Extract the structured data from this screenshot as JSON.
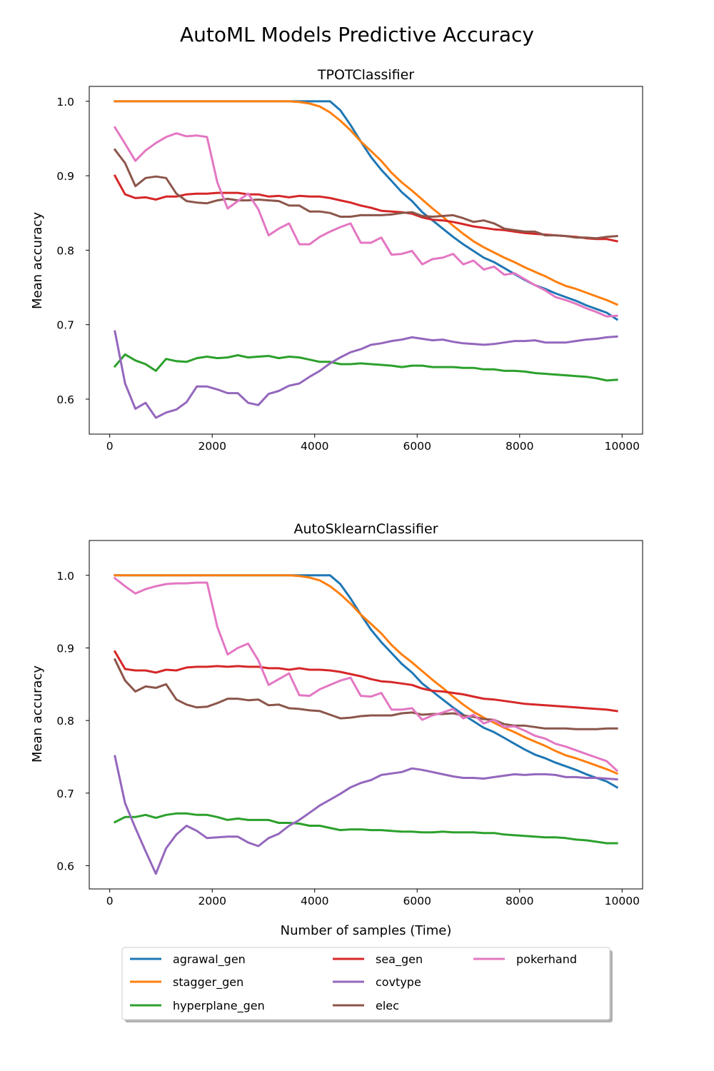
{
  "figure": {
    "suptitle": "AutoML Models Predictive Accuracy",
    "colors": {
      "agrawal_gen": "#1f77b4",
      "stagger_gen": "#ff7f0e",
      "hyperplane_gen": "#2ca02c",
      "sea_gen": "#d62728",
      "covtype": "#9467bd",
      "elec": "#8c564b",
      "pokerhand": "#e377c2"
    },
    "legend": [
      "agrawal_gen",
      "stagger_gen",
      "hyperplane_gen",
      "sea_gen",
      "covtype",
      "elec",
      "pokerhand"
    ],
    "legend_location": "lower-center",
    "legend_columns": 3
  },
  "chart_data": [
    {
      "type": "line",
      "title": "TPOTClassifier",
      "xlabel": "",
      "ylabel": "Mean accuracy",
      "xlim": [
        -400,
        10400
      ],
      "ylim": [
        0.553,
        1.02
      ],
      "xticks": [
        0,
        2000,
        4000,
        6000,
        8000,
        10000
      ],
      "xtick_labels": [
        "0",
        "2000",
        "4000",
        "6000",
        "8000",
        "10000"
      ],
      "yticks": [
        0.6,
        0.7,
        0.8,
        0.9,
        1.0
      ],
      "ytick_labels": [
        "0.6",
        "0.7",
        "0.8",
        "0.9",
        "1.0"
      ],
      "grid": false,
      "x": [
        100,
        300,
        500,
        700,
        900,
        1100,
        1300,
        1500,
        1700,
        1900,
        2100,
        2300,
        2500,
        2700,
        2900,
        3100,
        3300,
        3500,
        3700,
        3900,
        4100,
        4300,
        4500,
        4700,
        4900,
        5100,
        5300,
        5500,
        5700,
        5900,
        6100,
        6300,
        6500,
        6700,
        6900,
        7100,
        7300,
        7500,
        7700,
        7900,
        8100,
        8300,
        8500,
        8700,
        8900,
        9100,
        9300,
        9500,
        9700,
        9900
      ],
      "series": [
        {
          "name": "agrawal_gen",
          "values": [
            1.0,
            1.0,
            1.0,
            1.0,
            1.0,
            1.0,
            1.0,
            1.0,
            1.0,
            1.0,
            1.0,
            1.0,
            1.0,
            1.0,
            1.0,
            1.0,
            1.0,
            1.0,
            1.0,
            1.0,
            1.0,
            1.0,
            0.988,
            0.968,
            0.946,
            0.925,
            0.908,
            0.893,
            0.878,
            0.866,
            0.851,
            0.84,
            0.829,
            0.818,
            0.808,
            0.799,
            0.79,
            0.784,
            0.776,
            0.768,
            0.76,
            0.753,
            0.748,
            0.742,
            0.737,
            0.732,
            0.726,
            0.721,
            0.716,
            0.707
          ]
        },
        {
          "name": "stagger_gen",
          "values": [
            1.0,
            1.0,
            1.0,
            1.0,
            1.0,
            1.0,
            1.0,
            1.0,
            1.0,
            1.0,
            1.0,
            1.0,
            1.0,
            1.0,
            1.0,
            1.0,
            1.0,
            1.0,
            0.999,
            0.997,
            0.993,
            0.985,
            0.974,
            0.961,
            0.946,
            0.933,
            0.92,
            0.904,
            0.891,
            0.88,
            0.868,
            0.856,
            0.845,
            0.833,
            0.822,
            0.812,
            0.804,
            0.797,
            0.79,
            0.784,
            0.777,
            0.771,
            0.765,
            0.758,
            0.752,
            0.748,
            0.743,
            0.738,
            0.733,
            0.727
          ]
        },
        {
          "name": "hyperplane_gen",
          "values": [
            0.644,
            0.66,
            0.652,
            0.647,
            0.638,
            0.654,
            0.651,
            0.65,
            0.655,
            0.657,
            0.655,
            0.656,
            0.659,
            0.656,
            0.657,
            0.658,
            0.655,
            0.657,
            0.656,
            0.653,
            0.65,
            0.65,
            0.647,
            0.647,
            0.648,
            0.647,
            0.646,
            0.645,
            0.643,
            0.645,
            0.645,
            0.643,
            0.643,
            0.643,
            0.642,
            0.642,
            0.64,
            0.64,
            0.638,
            0.638,
            0.637,
            0.635,
            0.634,
            0.633,
            0.632,
            0.631,
            0.63,
            0.628,
            0.625,
            0.626
          ]
        },
        {
          "name": "sea_gen",
          "values": [
            0.9,
            0.875,
            0.87,
            0.871,
            0.868,
            0.872,
            0.872,
            0.875,
            0.876,
            0.876,
            0.877,
            0.877,
            0.877,
            0.875,
            0.875,
            0.872,
            0.873,
            0.871,
            0.873,
            0.872,
            0.872,
            0.87,
            0.867,
            0.864,
            0.86,
            0.857,
            0.853,
            0.852,
            0.851,
            0.849,
            0.844,
            0.841,
            0.84,
            0.838,
            0.835,
            0.832,
            0.83,
            0.828,
            0.827,
            0.825,
            0.823,
            0.822,
            0.821,
            0.82,
            0.819,
            0.818,
            0.816,
            0.815,
            0.815,
            0.812
          ]
        },
        {
          "name": "covtype",
          "values": [
            0.691,
            0.621,
            0.587,
            0.595,
            0.575,
            0.582,
            0.586,
            0.596,
            0.617,
            0.617,
            0.613,
            0.608,
            0.608,
            0.595,
            0.592,
            0.607,
            0.611,
            0.618,
            0.621,
            0.63,
            0.638,
            0.648,
            0.656,
            0.663,
            0.667,
            0.673,
            0.675,
            0.678,
            0.68,
            0.683,
            0.681,
            0.679,
            0.68,
            0.677,
            0.675,
            0.674,
            0.673,
            0.674,
            0.676,
            0.678,
            0.678,
            0.679,
            0.676,
            0.676,
            0.676,
            0.678,
            0.68,
            0.681,
            0.683,
            0.684
          ]
        },
        {
          "name": "elec",
          "values": [
            0.935,
            0.917,
            0.886,
            0.897,
            0.899,
            0.897,
            0.876,
            0.866,
            0.864,
            0.863,
            0.867,
            0.869,
            0.867,
            0.867,
            0.868,
            0.867,
            0.866,
            0.86,
            0.86,
            0.852,
            0.852,
            0.85,
            0.845,
            0.845,
            0.847,
            0.847,
            0.847,
            0.848,
            0.85,
            0.851,
            0.846,
            0.845,
            0.846,
            0.847,
            0.843,
            0.838,
            0.84,
            0.836,
            0.829,
            0.827,
            0.825,
            0.825,
            0.82,
            0.82,
            0.819,
            0.817,
            0.817,
            0.816,
            0.818,
            0.819
          ]
        },
        {
          "name": "pokerhand",
          "values": [
            0.965,
            0.943,
            0.92,
            0.934,
            0.944,
            0.952,
            0.957,
            0.953,
            0.954,
            0.952,
            0.891,
            0.856,
            0.866,
            0.876,
            0.855,
            0.82,
            0.829,
            0.836,
            0.808,
            0.808,
            0.818,
            0.825,
            0.831,
            0.836,
            0.81,
            0.81,
            0.817,
            0.794,
            0.795,
            0.799,
            0.781,
            0.788,
            0.79,
            0.795,
            0.781,
            0.786,
            0.774,
            0.778,
            0.767,
            0.769,
            0.761,
            0.753,
            0.746,
            0.737,
            0.733,
            0.728,
            0.722,
            0.717,
            0.711,
            0.712
          ]
        }
      ]
    },
    {
      "type": "line",
      "title": "AutoSklearnClassifier",
      "xlabel": "Number of samples (Time)",
      "ylabel": "Mean accuracy",
      "xlim": [
        -400,
        10400
      ],
      "ylim": [
        0.568,
        1.048
      ],
      "xticks": [
        0,
        2000,
        4000,
        6000,
        8000,
        10000
      ],
      "xtick_labels": [
        "0",
        "2000",
        "4000",
        "6000",
        "8000",
        "10000"
      ],
      "yticks": [
        0.6,
        0.7,
        0.8,
        0.9,
        1.0
      ],
      "ytick_labels": [
        "0.6",
        "0.7",
        "0.8",
        "0.9",
        "1.0"
      ],
      "grid": false,
      "x": [
        100,
        300,
        500,
        700,
        900,
        1100,
        1300,
        1500,
        1700,
        1900,
        2100,
        2300,
        2500,
        2700,
        2900,
        3100,
        3300,
        3500,
        3700,
        3900,
        4100,
        4300,
        4500,
        4700,
        4900,
        5100,
        5300,
        5500,
        5700,
        5900,
        6100,
        6300,
        6500,
        6700,
        6900,
        7100,
        7300,
        7500,
        7700,
        7900,
        8100,
        8300,
        8500,
        8700,
        8900,
        9100,
        9300,
        9500,
        9700,
        9900
      ],
      "series": [
        {
          "name": "agrawal_gen",
          "values": [
            1.0,
            1.0,
            1.0,
            1.0,
            1.0,
            1.0,
            1.0,
            1.0,
            1.0,
            1.0,
            1.0,
            1.0,
            1.0,
            1.0,
            1.0,
            1.0,
            1.0,
            1.0,
            1.0,
            1.0,
            1.0,
            1.0,
            0.988,
            0.968,
            0.946,
            0.925,
            0.908,
            0.893,
            0.878,
            0.866,
            0.851,
            0.84,
            0.829,
            0.818,
            0.808,
            0.799,
            0.79,
            0.784,
            0.776,
            0.768,
            0.76,
            0.753,
            0.748,
            0.742,
            0.737,
            0.732,
            0.726,
            0.721,
            0.716,
            0.708
          ]
        },
        {
          "name": "stagger_gen",
          "values": [
            1.0,
            1.0,
            1.0,
            1.0,
            1.0,
            1.0,
            1.0,
            1.0,
            1.0,
            1.0,
            1.0,
            1.0,
            1.0,
            1.0,
            1.0,
            1.0,
            1.0,
            1.0,
            0.999,
            0.997,
            0.993,
            0.985,
            0.974,
            0.961,
            0.946,
            0.933,
            0.92,
            0.904,
            0.891,
            0.88,
            0.868,
            0.856,
            0.845,
            0.833,
            0.822,
            0.812,
            0.804,
            0.797,
            0.79,
            0.784,
            0.777,
            0.771,
            0.765,
            0.758,
            0.752,
            0.748,
            0.743,
            0.738,
            0.733,
            0.727
          ]
        },
        {
          "name": "hyperplane_gen",
          "values": [
            0.66,
            0.667,
            0.667,
            0.67,
            0.666,
            0.67,
            0.672,
            0.672,
            0.67,
            0.67,
            0.667,
            0.663,
            0.665,
            0.663,
            0.663,
            0.663,
            0.659,
            0.659,
            0.658,
            0.655,
            0.655,
            0.652,
            0.649,
            0.65,
            0.65,
            0.649,
            0.649,
            0.648,
            0.647,
            0.647,
            0.646,
            0.646,
            0.647,
            0.646,
            0.646,
            0.646,
            0.645,
            0.645,
            0.643,
            0.642,
            0.641,
            0.64,
            0.639,
            0.639,
            0.638,
            0.636,
            0.635,
            0.633,
            0.631,
            0.631
          ]
        },
        {
          "name": "sea_gen",
          "values": [
            0.895,
            0.871,
            0.869,
            0.869,
            0.866,
            0.87,
            0.869,
            0.873,
            0.874,
            0.874,
            0.875,
            0.874,
            0.875,
            0.874,
            0.874,
            0.872,
            0.872,
            0.87,
            0.872,
            0.87,
            0.87,
            0.869,
            0.867,
            0.864,
            0.861,
            0.857,
            0.854,
            0.853,
            0.851,
            0.849,
            0.844,
            0.841,
            0.84,
            0.838,
            0.836,
            0.833,
            0.83,
            0.829,
            0.827,
            0.825,
            0.823,
            0.822,
            0.821,
            0.82,
            0.819,
            0.818,
            0.817,
            0.816,
            0.815,
            0.813
          ]
        },
        {
          "name": "covtype",
          "values": [
            0.751,
            0.686,
            0.652,
            0.62,
            0.589,
            0.624,
            0.643,
            0.655,
            0.648,
            0.638,
            0.639,
            0.64,
            0.64,
            0.632,
            0.627,
            0.638,
            0.644,
            0.655,
            0.663,
            0.673,
            0.683,
            0.691,
            0.699,
            0.708,
            0.714,
            0.718,
            0.725,
            0.727,
            0.729,
            0.734,
            0.732,
            0.729,
            0.726,
            0.723,
            0.721,
            0.721,
            0.72,
            0.722,
            0.724,
            0.726,
            0.725,
            0.726,
            0.726,
            0.725,
            0.722,
            0.722,
            0.721,
            0.721,
            0.72,
            0.719
          ]
        },
        {
          "name": "elec",
          "values": [
            0.884,
            0.855,
            0.84,
            0.847,
            0.845,
            0.85,
            0.829,
            0.822,
            0.818,
            0.819,
            0.824,
            0.83,
            0.83,
            0.828,
            0.829,
            0.821,
            0.822,
            0.817,
            0.816,
            0.814,
            0.813,
            0.808,
            0.803,
            0.804,
            0.806,
            0.807,
            0.807,
            0.807,
            0.81,
            0.811,
            0.808,
            0.809,
            0.809,
            0.81,
            0.807,
            0.805,
            0.802,
            0.801,
            0.795,
            0.793,
            0.793,
            0.791,
            0.789,
            0.789,
            0.789,
            0.788,
            0.788,
            0.788,
            0.789,
            0.789
          ]
        },
        {
          "name": "pokerhand",
          "values": [
            0.996,
            0.985,
            0.975,
            0.981,
            0.985,
            0.988,
            0.989,
            0.989,
            0.99,
            0.99,
            0.929,
            0.891,
            0.9,
            0.906,
            0.883,
            0.849,
            0.857,
            0.865,
            0.835,
            0.834,
            0.843,
            0.849,
            0.855,
            0.859,
            0.834,
            0.833,
            0.838,
            0.815,
            0.815,
            0.817,
            0.801,
            0.807,
            0.811,
            0.816,
            0.803,
            0.808,
            0.796,
            0.801,
            0.791,
            0.792,
            0.786,
            0.779,
            0.775,
            0.768,
            0.764,
            0.759,
            0.754,
            0.749,
            0.744,
            0.731
          ]
        }
      ]
    }
  ]
}
